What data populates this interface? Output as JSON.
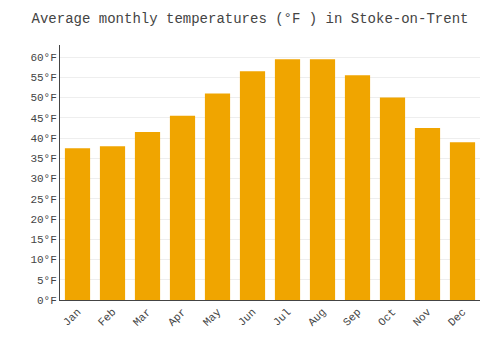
{
  "chart_data": {
    "type": "bar",
    "title": "Average monthly temperatures (°F ) in Stoke-on-Trent",
    "categories": [
      "Jan",
      "Feb",
      "Mar",
      "Apr",
      "May",
      "Jun",
      "Jul",
      "Aug",
      "Sep",
      "Oct",
      "Nov",
      "Dec"
    ],
    "values": [
      37.5,
      38.0,
      41.5,
      45.5,
      51.0,
      56.5,
      59.5,
      59.5,
      55.5,
      50.0,
      42.5,
      39.0
    ],
    "color": "#F0A500",
    "ylim": [
      0,
      63
    ],
    "yticks": [
      {
        "value": 0,
        "label": "0°F"
      },
      {
        "value": 5,
        "label": "5°F"
      },
      {
        "value": 10,
        "label": "10°F"
      },
      {
        "value": 15,
        "label": "15°F"
      },
      {
        "value": 20,
        "label": "20°F"
      },
      {
        "value": 25,
        "label": "25°F"
      },
      {
        "value": 30,
        "label": "30°F"
      },
      {
        "value": 35,
        "label": "35°F"
      },
      {
        "value": 40,
        "label": "40°F"
      },
      {
        "value": 45,
        "label": "45°F"
      },
      {
        "value": 50,
        "label": "50°F"
      },
      {
        "value": 55,
        "label": "55°F"
      },
      {
        "value": 60,
        "label": "60°F"
      }
    ],
    "grid": true
  }
}
